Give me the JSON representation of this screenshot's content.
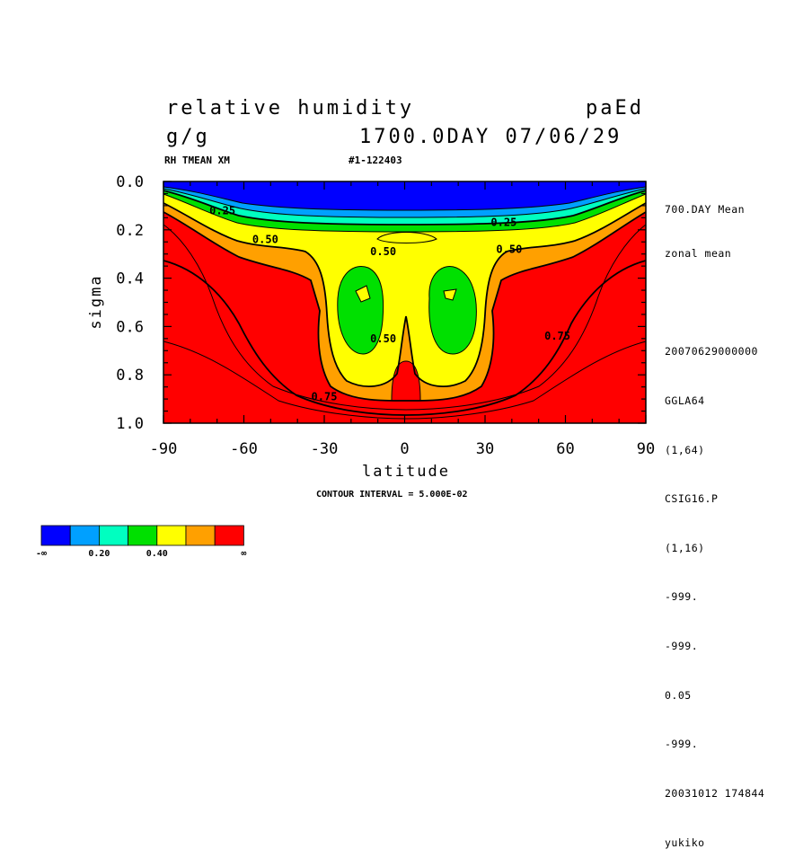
{
  "header": {
    "title": "relative humidity",
    "run_id": "paEd",
    "units": "g/g",
    "time": "1700.0DAY 07/06/29",
    "var_label": "RH TMEAN XM",
    "record": "#1-122403"
  },
  "sidebar": {
    "lines_top": [
      "700.DAY Mean",
      "zonal mean"
    ],
    "lines_bottom": [
      "20070629000000",
      "GGLA64",
      "(1,64)",
      "CSIG16.P",
      "(1,16)",
      "-999.",
      "-999.",
      "0.05",
      "-999.",
      "20031012 174844",
      "yukiko"
    ]
  },
  "footer": {
    "contour_interval": "CONTOUR INTERVAL = 5.000E-02"
  },
  "colors": {
    "levels": [
      "#0000ff",
      "#00a0ff",
      "#00ffc0",
      "#00e000",
      "#ffff00",
      "#ffa000",
      "#ff0000"
    ]
  },
  "chart_data": {
    "type": "heatmap",
    "title": "relative humidity",
    "xlabel": "latitude",
    "ylabel": "sigma",
    "xlim": [
      -90,
      90
    ],
    "ylim": [
      1.0,
      0.0
    ],
    "x_ticks": [
      "-90",
      "-60",
      "-30",
      "0",
      "30",
      "60",
      "90"
    ],
    "y_ticks": [
      "0.0",
      "0.2",
      "0.4",
      "0.6",
      "0.8",
      "1.0"
    ],
    "contour_labels": [
      {
        "text": "0.25",
        "lat": -68,
        "sigma": 0.12
      },
      {
        "text": "0.25",
        "lat": 37,
        "sigma": 0.17
      },
      {
        "text": "0.50",
        "lat": -52,
        "sigma": 0.24
      },
      {
        "text": "0.50",
        "lat": -8,
        "sigma": 0.29
      },
      {
        "text": "0.50",
        "lat": 39,
        "sigma": 0.28
      },
      {
        "text": "0.50",
        "lat": -8,
        "sigma": 0.65
      },
      {
        "text": "0.75",
        "lat": 57,
        "sigma": 0.64
      },
      {
        "text": "0.75",
        "lat": -30,
        "sigma": 0.89
      }
    ],
    "colorbar": {
      "boundaries": [
        0.1,
        0.2,
        0.3,
        0.4,
        0.5,
        0.6
      ],
      "tick_labels": [
        "-∞",
        "0.20",
        "0.40",
        "∞"
      ]
    }
  }
}
